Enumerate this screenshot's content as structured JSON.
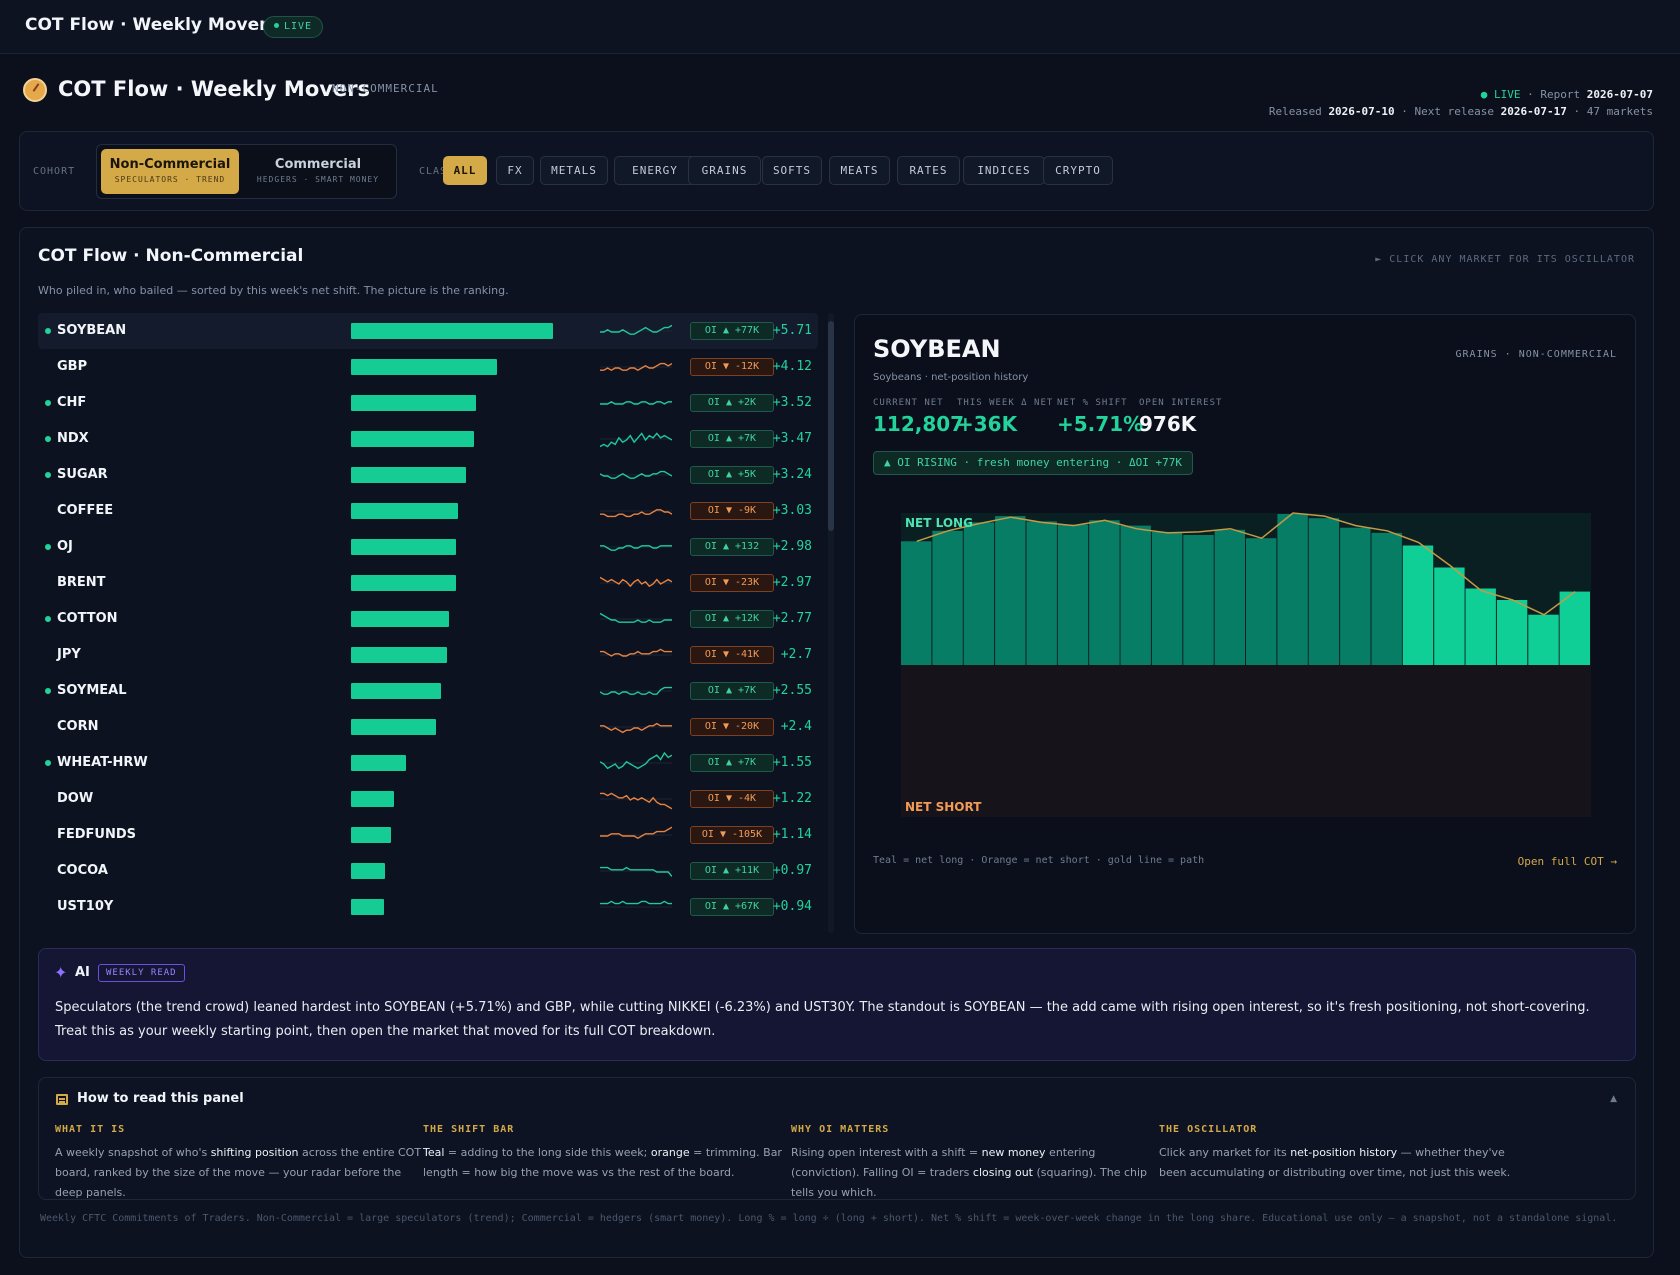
{
  "topbar": {
    "title": "COT Flow · Weekly Movers",
    "live": "LIVE"
  },
  "header": {
    "title": "COT Flow · Weekly Movers",
    "subtitle": "NON-COMMERCIAL",
    "live": "LIVE",
    "report_label": "Report",
    "report_date": "2026-07-07",
    "released_label": "Released",
    "released_date": "2026-07-10",
    "next_label": "Next release",
    "next_date": "2026-07-17",
    "markets": "47 markets"
  },
  "filters": {
    "cohort_label": "COHORT",
    "class_label": "CLASS",
    "cohorts": [
      {
        "label": "Non-Commercial",
        "sub": "SPECULATORS · TREND"
      },
      {
        "label": "Commercial",
        "sub": "HEDGERS · SMART MONEY"
      }
    ],
    "classes": [
      "ALL",
      "FX",
      "METALS",
      "ENERGY",
      "GRAINS",
      "SOFTS",
      "MEATS",
      "RATES",
      "INDICES",
      "CRYPTO"
    ]
  },
  "panel": {
    "title": "COT Flow · Non-Commercial",
    "hint": "► CLICK ANY MARKET FOR ITS OSCILLATOR",
    "desc": "Who piled in, who bailed — sorted by this week's net shift. The picture is the ranking."
  },
  "markets": [
    {
      "name": "SOYBEAN",
      "dot": true,
      "shift": 5.71,
      "pct": "+5.71",
      "oi": "OI ▲ +77K",
      "oi_up": true,
      "spark": [
        5,
        5,
        6,
        5,
        5,
        5,
        6,
        5,
        4,
        4,
        5,
        6,
        7,
        6,
        5,
        5,
        6,
        7,
        7,
        8
      ],
      "selected": true
    },
    {
      "name": "GBP",
      "dot": false,
      "shift": 4.12,
      "pct": "+4.12",
      "oi": "OI ▼ -12K",
      "oi_up": false,
      "spark": [
        4,
        4,
        5,
        4,
        5,
        5,
        4,
        4,
        5,
        5,
        4,
        5,
        6,
        5,
        5,
        6,
        7,
        7,
        6,
        7
      ]
    },
    {
      "name": "CHF",
      "dot": true,
      "shift": 3.52,
      "pct": "+3.52",
      "oi": "OI ▲ +2K",
      "oi_up": true,
      "spark": [
        5,
        5,
        5,
        6,
        5,
        5,
        5,
        6,
        6,
        5,
        5,
        6,
        6,
        5,
        5,
        6,
        6,
        5,
        6,
        6
      ]
    },
    {
      "name": "NDX",
      "dot": true,
      "shift": 3.47,
      "pct": "+3.47",
      "oi": "OI ▲ +7K",
      "oi_up": true,
      "spark": [
        2,
        3,
        2,
        4,
        3,
        6,
        4,
        5,
        7,
        4,
        6,
        8,
        5,
        7,
        6,
        8,
        6,
        7,
        6,
        5
      ]
    },
    {
      "name": "SUGAR",
      "dot": true,
      "shift": 3.24,
      "pct": "+3.24",
      "oi": "OI ▲ +5K",
      "oi_up": true,
      "spark": [
        6,
        5,
        5,
        4,
        4,
        5,
        6,
        5,
        4,
        4,
        5,
        6,
        5,
        5,
        6,
        6,
        7,
        7,
        6,
        5
      ]
    },
    {
      "name": "COFFEE",
      "dot": false,
      "shift": 3.03,
      "pct": "+3.03",
      "oi": "OI ▼ -9K",
      "oi_up": false,
      "spark": [
        4,
        4,
        3,
        3,
        3,
        4,
        4,
        3,
        3,
        4,
        4,
        5,
        4,
        4,
        5,
        6,
        6,
        5,
        5,
        4
      ]
    },
    {
      "name": "OJ",
      "dot": true,
      "shift": 2.98,
      "pct": "+2.98",
      "oi": "OI ▲ +132",
      "oi_up": true,
      "spark": [
        6,
        6,
        5,
        4,
        4,
        5,
        5,
        6,
        6,
        5,
        5,
        6,
        6,
        6,
        5,
        5,
        6,
        6,
        6,
        6
      ]
    },
    {
      "name": "BRENT",
      "dot": false,
      "shift": 2.97,
      "pct": "+2.97",
      "oi": "OI ▼ -23K",
      "oi_up": false,
      "spark": [
        8,
        7,
        6,
        7,
        6,
        5,
        7,
        6,
        4,
        6,
        7,
        5,
        6,
        4,
        5,
        7,
        5,
        6,
        7,
        6
      ]
    },
    {
      "name": "COTTON",
      "dot": true,
      "shift": 2.77,
      "pct": "+2.77",
      "oi": "OI ▲ +12K",
      "oi_up": true,
      "spark": [
        8,
        7,
        6,
        5,
        5,
        4,
        4,
        4,
        4,
        4,
        5,
        4,
        4,
        5,
        4,
        4,
        4,
        5,
        5,
        5
      ]
    },
    {
      "name": "JPY",
      "dot": false,
      "shift": 2.7,
      "pct": "+2.7",
      "oi": "OI ▼ -41K",
      "oi_up": false,
      "spark": [
        7,
        7,
        6,
        5,
        6,
        6,
        5,
        5,
        6,
        6,
        7,
        6,
        6,
        6,
        7,
        7,
        8,
        7,
        7,
        7
      ]
    },
    {
      "name": "SOYMEAL",
      "dot": true,
      "shift": 2.55,
      "pct": "+2.55",
      "oi": "OI ▲ +7K",
      "oi_up": true,
      "spark": [
        5,
        4,
        4,
        5,
        5,
        4,
        5,
        5,
        4,
        4,
        5,
        4,
        4,
        5,
        4,
        4,
        6,
        7,
        7,
        7
      ]
    },
    {
      "name": "CORN",
      "dot": false,
      "shift": 2.4,
      "pct": "+2.4",
      "oi": "OI ▼ -20K",
      "oi_up": false,
      "spark": [
        6,
        6,
        5,
        4,
        5,
        4,
        3,
        4,
        4,
        5,
        5,
        4,
        5,
        6,
        6,
        7,
        6,
        6,
        6,
        6
      ]
    },
    {
      "name": "WHEAT-HRW",
      "dot": true,
      "shift": 1.55,
      "pct": "+1.55",
      "oi": "OI ▲ +7K",
      "oi_up": true,
      "spark": [
        6,
        5,
        3,
        4,
        5,
        3,
        4,
        6,
        5,
        4,
        3,
        4,
        5,
        7,
        8,
        9,
        7,
        10,
        8,
        9
      ]
    },
    {
      "name": "DOW",
      "dot": false,
      "shift": 1.22,
      "pct": "+1.22",
      "oi": "OI ▼ -4K",
      "oi_up": false,
      "spark": [
        8,
        8,
        7,
        8,
        7,
        6,
        6,
        7,
        5,
        6,
        5,
        6,
        5,
        4,
        6,
        4,
        3,
        3,
        2,
        1
      ]
    },
    {
      "name": "FEDFUNDS",
      "dot": false,
      "shift": 1.14,
      "pct": "+1.14",
      "oi": "OI ▼ -105K",
      "oi_up": false,
      "spark": [
        5,
        5,
        5,
        6,
        6,
        6,
        5,
        5,
        5,
        5,
        4,
        5,
        6,
        6,
        6,
        7,
        7,
        7,
        8,
        9
      ]
    },
    {
      "name": "COCOA",
      "dot": false,
      "shift": 0.97,
      "pct": "+0.97",
      "oi": "OI ▲ +11K",
      "oi_up": true,
      "spark": [
        7,
        7,
        7,
        6,
        6,
        6,
        6,
        7,
        6,
        6,
        6,
        6,
        6,
        6,
        6,
        5,
        5,
        5,
        5,
        3
      ]
    },
    {
      "name": "UST10Y",
      "dot": false,
      "shift": 0.94,
      "pct": "+0.94",
      "oi": "OI ▲ +67K",
      "oi_up": true,
      "spark": [
        7,
        7,
        7,
        8,
        7,
        7,
        8,
        7,
        7,
        7,
        7,
        8,
        8,
        7,
        7,
        7,
        7,
        8,
        7,
        7
      ]
    }
  ],
  "detail": {
    "name": "SOYBEAN",
    "tags": "GRAINS · NON-COMMERCIAL",
    "sub": "Soybeans · net-position history",
    "stats": [
      {
        "label": "CURRENT NET",
        "value": "112,807"
      },
      {
        "label": "THIS WEEK Δ NET",
        "value": "+36K"
      },
      {
        "label": "NET % SHIFT",
        "value": "+5.71%"
      },
      {
        "label": "OPEN INTEREST",
        "value": "976K"
      }
    ],
    "oi_chip": "▲ OI RISING · fresh money entering · ΔOI +77K",
    "legend": "Teal = net long · Orange = net short · gold line = path",
    "link": "Open full COT →"
  },
  "chart_data": {
    "type": "bar",
    "title": "",
    "annotations": [
      "NET LONG",
      "NET SHORT"
    ],
    "values": [
      118,
      128,
      136,
      142,
      137,
      134,
      138,
      133,
      127,
      124,
      129,
      121,
      144,
      140,
      131,
      126,
      114,
      93,
      73,
      62,
      48,
      70
    ],
    "line": [
      118,
      128,
      135,
      141,
      136,
      133,
      138,
      130,
      126,
      127,
      130,
      121,
      145,
      142,
      133,
      128,
      117,
      95,
      71,
      62,
      48,
      70
    ],
    "highlight_last": 6,
    "ylim": [
      -145,
      145
    ],
    "grid": false,
    "colors": {
      "long": "#067d64",
      "long_recent": "#0fcf97",
      "line": "#c49a45",
      "short_zone": "#17131a",
      "long_zone": "#0a1f22"
    }
  },
  "ai": {
    "label": "AI",
    "badge": "WEEKLY READ",
    "text": "Speculators (the trend crowd) leaned hardest into SOYBEAN (+5.71%) and GBP, while cutting NIKKEI (-6.23%) and UST30Y. The standout is SOYBEAN — the add came with rising open interest, so it's fresh positioning, not short-covering. Treat this as your weekly starting point, then open the market that moved for its full COT breakdown."
  },
  "howto": {
    "title": "How to read this panel",
    "cols": [
      {
        "head": "WHAT IT IS",
        "t1": "A weekly snapshot of who's ",
        "b1": "shifting position",
        "t2": " across the entire COT board, ranked by the size of the move — your radar before the deep panels.",
        "b2": "",
        "t3": ""
      },
      {
        "head": "THE SHIFT BAR",
        "t1": "",
        "b1": "Teal",
        "t2": " = adding to the long side this week; ",
        "b2": "orange",
        "t3": " = trimming. Bar length = how big the move was vs the rest of the board."
      },
      {
        "head": "WHY OI MATTERS",
        "t1": "Rising open interest with a shift = ",
        "b1": "new money",
        "t2": " entering (conviction). Falling OI = traders ",
        "b2": "closing out",
        "t3": " (squaring). The chip tells you which."
      },
      {
        "head": "THE OSCILLATOR",
        "t1": "Click any market for its ",
        "b1": "net-position history",
        "t2": " — whether they've been accumulating or distributing over time, not just this week.",
        "b2": "",
        "t3": ""
      }
    ]
  },
  "footer": {
    "disclaimer": "Weekly CFTC Commitments of Traders. Non-Commercial = large speculators (trend); Commercial = hedgers (smart money). Long % = long ÷ (long + short). Net % shift = week-over-week change in the long share. Educational use only — a snapshot, not a standalone signal."
  }
}
